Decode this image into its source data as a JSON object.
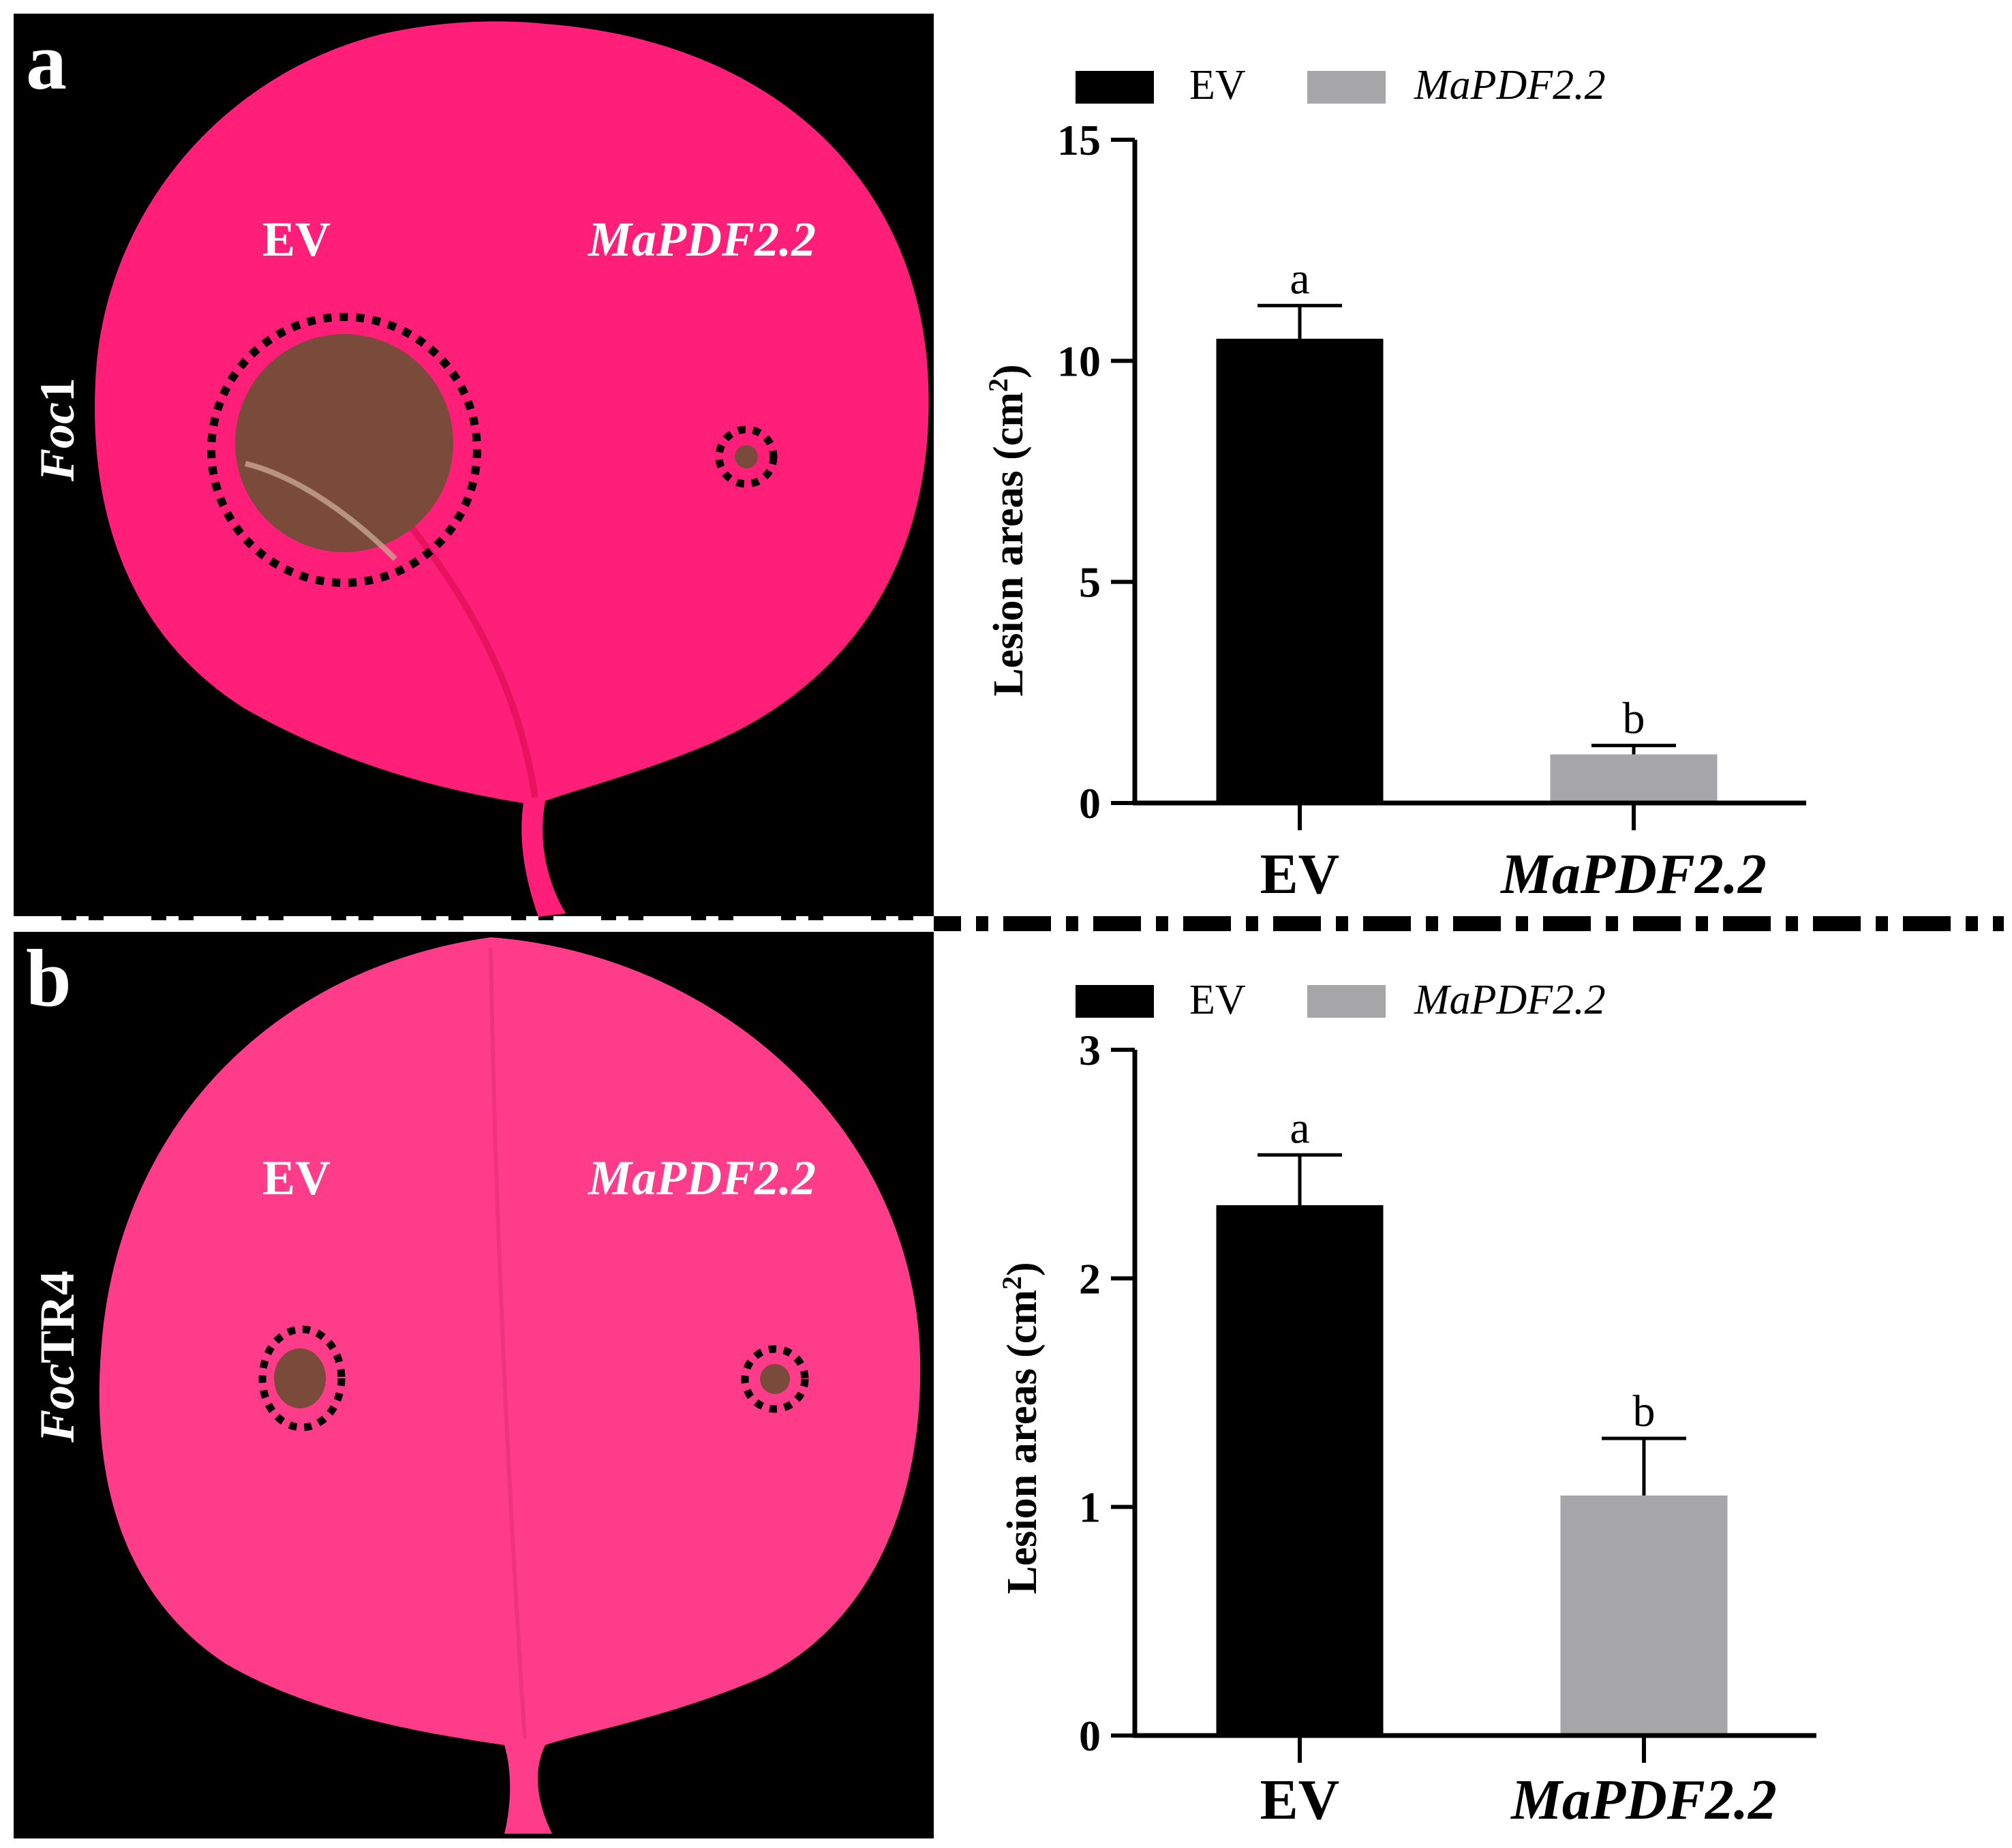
{
  "panels": [
    {
      "letter": "a",
      "pathogen_italic": "Foc",
      "pathogen_rest": "1",
      "leaf_labels": [
        "EV",
        "MaPDF2.2"
      ]
    },
    {
      "letter": "b",
      "pathogen_italic": "Foc",
      "pathogen_rest": "TR4",
      "leaf_labels": [
        "EV",
        "MaPDF2.2"
      ]
    }
  ],
  "colors": {
    "ev_bar": "#000000",
    "mapdf_bar": "#a6a6a8",
    "leaf": "#ff1f78",
    "leaf_b": "#ff3c8a",
    "lesion": "#7a4a3a",
    "background_photo": "#000000"
  },
  "chart_data": [
    {
      "type": "bar",
      "categories": [
        "EV",
        "MaPDF2.2"
      ],
      "values": [
        10.5,
        1.1
      ],
      "errors": [
        0.75,
        0.2
      ],
      "significance": [
        "a",
        "b"
      ],
      "legend": [
        "EV",
        "MaPDF2.2"
      ],
      "legend_placement": "top",
      "ylabel": "Lesion areas (cm",
      "ylabel_sup": "2",
      "ylabel_close": ")",
      "ylim": [
        0,
        15
      ],
      "yticks": [
        0,
        5,
        10,
        15
      ],
      "grid": false
    },
    {
      "type": "bar",
      "categories": [
        "EV",
        "MaPDF2.2"
      ],
      "values": [
        2.32,
        1.05
      ],
      "errors": [
        0.22,
        0.25
      ],
      "significance": [
        "a",
        "b"
      ],
      "legend": [
        "EV",
        "MaPDF2.2"
      ],
      "legend_placement": "top",
      "ylabel": "Lesion areas (cm",
      "ylabel_sup": "2",
      "ylabel_close": ")",
      "ylim": [
        0,
        3
      ],
      "yticks": [
        0,
        1,
        2,
        3
      ],
      "grid": false
    }
  ]
}
